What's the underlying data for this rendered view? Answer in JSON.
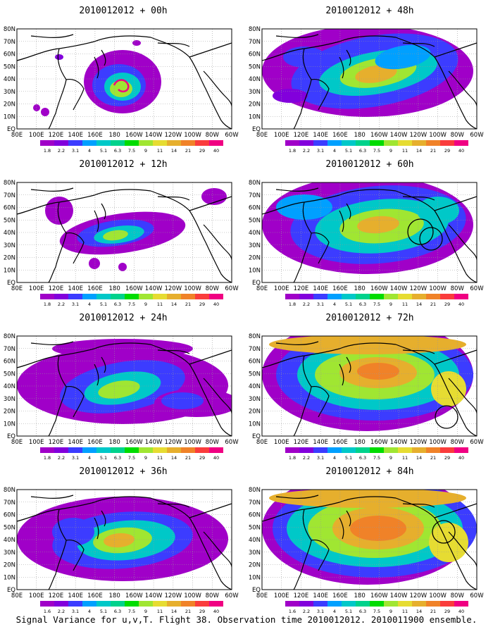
{
  "caption": "Signal Variance for u,v,T. Flight 38. Observation time 2010012012. 2010011900 ensemble.",
  "colors": {
    "scale": [
      "#a000c8",
      "#8200dc",
      "#3c3cff",
      "#00a0ff",
      "#00c8c8",
      "#00d28c",
      "#00dc00",
      "#a0e632",
      "#e6dc32",
      "#e6af2d",
      "#f08228",
      "#fa3c3c",
      "#f00082"
    ],
    "land_outline": "#000000",
    "grid": "#999999"
  },
  "chart_data": [
    {
      "type": "heatmap",
      "title": "2010012012 + 00h",
      "x_ticks": [
        "80E",
        "100E",
        "120E",
        "140E",
        "160E",
        "180",
        "160W",
        "140W",
        "120W",
        "100W",
        "80W",
        "60W"
      ],
      "y_ticks": [
        "80N",
        "70N",
        "60N",
        "50N",
        "40N",
        "30N",
        "20N",
        "10N",
        "EQ"
      ],
      "xlim": [
        "80E",
        "60W"
      ],
      "ylim": [
        "EQ",
        "80N"
      ],
      "colorbar_levels": [
        "1.8",
        "2.2",
        "3.1",
        "4",
        "5.1",
        "6.3",
        "7.5",
        "9",
        "11",
        "14",
        "21",
        "29",
        "40"
      ],
      "grid": true
    },
    {
      "type": "heatmap",
      "title": "2010012012 + 12h",
      "x_ticks": [
        "80E",
        "100E",
        "120E",
        "140E",
        "160E",
        "180",
        "160W",
        "140W",
        "120W",
        "100W",
        "80W",
        "60W"
      ],
      "y_ticks": [
        "80N",
        "70N",
        "60N",
        "50N",
        "40N",
        "30N",
        "20N",
        "10N",
        "EQ"
      ],
      "xlim": [
        "80E",
        "60W"
      ],
      "ylim": [
        "EQ",
        "80N"
      ],
      "colorbar_levels": [
        "1.8",
        "2.2",
        "3.1",
        "4",
        "5.1",
        "6.3",
        "7.5",
        "9",
        "11",
        "14",
        "21",
        "29",
        "40"
      ],
      "grid": true
    },
    {
      "type": "heatmap",
      "title": "2010012012 + 24h",
      "x_ticks": [
        "80E",
        "100E",
        "120E",
        "140E",
        "160E",
        "180",
        "160W",
        "140W",
        "120W",
        "100W",
        "80W",
        "60W"
      ],
      "y_ticks": [
        "80N",
        "70N",
        "60N",
        "50N",
        "40N",
        "30N",
        "20N",
        "10N",
        "EQ"
      ],
      "xlim": [
        "80E",
        "60W"
      ],
      "ylim": [
        "EQ",
        "80N"
      ],
      "colorbar_levels": [
        "1.8",
        "2.2",
        "3.1",
        "4",
        "5.1",
        "6.3",
        "7.5",
        "9",
        "11",
        "14",
        "21",
        "29",
        "40"
      ],
      "grid": true
    },
    {
      "type": "heatmap",
      "title": "2010012012 + 36h",
      "x_ticks": [
        "80E",
        "100E",
        "120E",
        "140E",
        "160E",
        "180",
        "160W",
        "140W",
        "120W",
        "100W",
        "80W",
        "60W"
      ],
      "y_ticks": [
        "80N",
        "70N",
        "60N",
        "50N",
        "40N",
        "30N",
        "20N",
        "10N",
        "EQ"
      ],
      "xlim": [
        "80E",
        "60W"
      ],
      "ylim": [
        "EQ",
        "80N"
      ],
      "colorbar_levels": [
        "1.6",
        "2.2",
        "3.1",
        "4",
        "5.1",
        "6.3",
        "7.5",
        "9",
        "11",
        "14",
        "21",
        "29",
        "40"
      ],
      "grid": true
    },
    {
      "type": "heatmap",
      "title": "2010012012 + 48h",
      "x_ticks": [
        "80E",
        "100E",
        "120E",
        "140E",
        "160E",
        "180",
        "160W",
        "140W",
        "120W",
        "100W",
        "80W",
        "60W"
      ],
      "y_ticks": [
        "80N",
        "70N",
        "60N",
        "50N",
        "40N",
        "30N",
        "20N",
        "10N",
        "EQ"
      ],
      "xlim": [
        "80E",
        "60W"
      ],
      "ylim": [
        "EQ",
        "80N"
      ],
      "colorbar_levels": [
        "1.8",
        "2.2",
        "3.1",
        "4",
        "5.1",
        "6.3",
        "7.5",
        "9",
        "11",
        "14",
        "21",
        "29",
        "40"
      ],
      "grid": true
    },
    {
      "type": "heatmap",
      "title": "2010012012 + 60h",
      "x_ticks": [
        "80E",
        "100E",
        "120E",
        "140E",
        "160E",
        "180",
        "160W",
        "140W",
        "120W",
        "100W",
        "80W",
        "60W"
      ],
      "y_ticks": [
        "80N",
        "70N",
        "60N",
        "50N",
        "40N",
        "30N",
        "20N",
        "10N",
        "EQ"
      ],
      "xlim": [
        "80E",
        "60W"
      ],
      "ylim": [
        "EQ",
        "80N"
      ],
      "colorbar_levels": [
        "1.8",
        "2.2",
        "3.1",
        "4",
        "5.1",
        "6.3",
        "7.5",
        "9",
        "11",
        "14",
        "21",
        "29",
        "40"
      ],
      "grid": true
    },
    {
      "type": "heatmap",
      "title": "2010012012 + 72h",
      "x_ticks": [
        "80E",
        "100E",
        "120E",
        "140E",
        "160E",
        "180",
        "160W",
        "140W",
        "120W",
        "100W",
        "80W",
        "60W"
      ],
      "y_ticks": [
        "80N",
        "70N",
        "60N",
        "50N",
        "40N",
        "30N",
        "20N",
        "10N",
        "EQ"
      ],
      "xlim": [
        "80E",
        "60W"
      ],
      "ylim": [
        "EQ",
        "80N"
      ],
      "colorbar_levels": [
        "1.8",
        "2.2",
        "3.1",
        "4",
        "5.1",
        "6.3",
        "7.5",
        "9",
        "11",
        "14",
        "21",
        "29",
        "40"
      ],
      "grid": true
    },
    {
      "type": "heatmap",
      "title": "2010012012 + 84h",
      "x_ticks": [
        "80E",
        "100E",
        "120E",
        "140E",
        "160E",
        "180",
        "160W",
        "140W",
        "120W",
        "100W",
        "80W",
        "60W"
      ],
      "y_ticks": [
        "80N",
        "70N",
        "60N",
        "50N",
        "40N",
        "30N",
        "20N",
        "10N",
        "EQ"
      ],
      "xlim": [
        "80E",
        "60W"
      ],
      "ylim": [
        "EQ",
        "80N"
      ],
      "colorbar_levels": [
        "1.6",
        "2.2",
        "3.1",
        "4",
        "5.1",
        "6.3",
        "7.5",
        "9",
        "11",
        "14",
        "21",
        "29",
        "40"
      ],
      "grid": true
    }
  ]
}
